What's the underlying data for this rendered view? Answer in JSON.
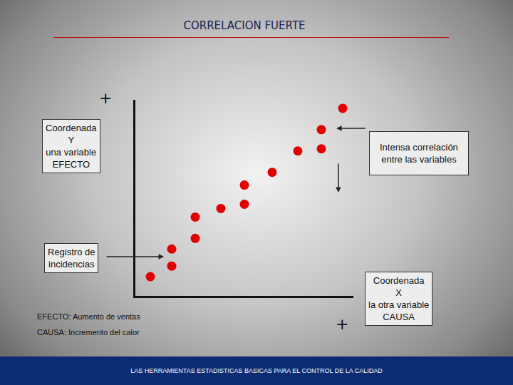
{
  "chart_data": {
    "type": "scatter",
    "title": "CORRELACION FUERTE",
    "ylabel": "Coordenada\nY\nuna variable\nEFECTO",
    "xlabel": "Coordenada\nX\nla otra variable\nCAUSA",
    "annotations": [
      "+",
      "+",
      "Intensa correlación\nentre las variables",
      "Registro de\nincidencias",
      "EFECTO: Aumento de ventas",
      "CAUSA: Incremento del calor"
    ],
    "footer": "LAS HERRAMIENTAS ESTADISTICAS BASICAS PARA EL CONTROL DE LA CALIDAD",
    "x": [
      0.7,
      1.7,
      1.7,
      2.8,
      2.8,
      4.0,
      5.1,
      5.1,
      6.4,
      7.6,
      8.7,
      8.7,
      9.7
    ],
    "values": [
      0.9,
      1.4,
      2.2,
      2.7,
      3.7,
      4.1,
      4.3,
      5.2,
      5.8,
      6.8,
      6.9,
      7.8,
      8.8
    ],
    "xlim": [
      0,
      10.2
    ],
    "ylim": [
      0,
      9.2
    ],
    "color": "#e00000",
    "marker": "circle",
    "tick_labels": false,
    "grid": false
  }
}
